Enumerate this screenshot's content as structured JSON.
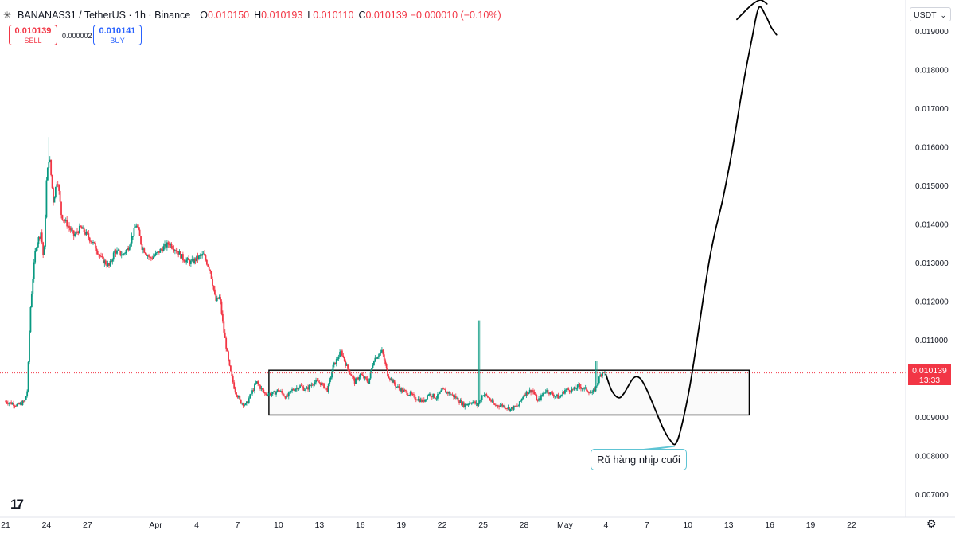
{
  "header": {
    "symbol": "BANANAS31 / TetherUS · 1h · Binance",
    "open_label": "O",
    "open": "0.010150",
    "high_label": "H",
    "high": "0.010193",
    "low_label": "L",
    "low": "0.010110",
    "close_label": "C",
    "close": "0.010139",
    "change": "−0.000010 (−0.10%)",
    "logo_icon": "banana-icon"
  },
  "trade": {
    "sell_price": "0.010139",
    "sell_label": "SELL",
    "spread": "0.000002",
    "buy_price": "0.010141",
    "buy_label": "BUY"
  },
  "currency_selector": "USDT",
  "price_tag": {
    "price": "0.010139",
    "countdown": "13:33"
  },
  "annotation": {
    "text": "Rũ hàng nhịp cuối"
  },
  "colors": {
    "up": "#089981",
    "down": "#f23645",
    "drawing": "#000000",
    "callout_border": "#5ec4d4"
  },
  "chart_data": {
    "type": "candlestick",
    "y_axis": {
      "range": [
        0.0064,
        0.0198
      ],
      "ticks": [
        "0.019000",
        "0.018000",
        "0.017000",
        "0.016000",
        "0.015000",
        "0.014000",
        "0.013000",
        "0.012000",
        "0.011000",
        "0.010000",
        "0.009000",
        "0.008000",
        "0.007000"
      ],
      "tick_values": [
        0.019,
        0.018,
        0.017,
        0.016,
        0.015,
        0.014,
        0.013,
        0.012,
        0.011,
        0.01,
        0.009,
        0.008,
        0.007
      ]
    },
    "x_axis": {
      "ticks": [
        "21",
        "24",
        "27",
        "Apr",
        "4",
        "7",
        "10",
        "13",
        "16",
        "19",
        "22",
        "25",
        "28",
        "May",
        "4",
        "7",
        "10",
        "13",
        "16",
        "19",
        "22"
      ],
      "tick_days": [
        0,
        3,
        6,
        11,
        14,
        17,
        20,
        23,
        26,
        29,
        32,
        35,
        38,
        41,
        44,
        47,
        50,
        53,
        56,
        59,
        62
      ],
      "day_range": [
        0,
        63.5
      ]
    },
    "current_price": 0.010139,
    "price_path": [
      [
        0,
        0.0094
      ],
      [
        0.9,
        0.0093
      ],
      [
        1.4,
        0.0094
      ],
      [
        1.6,
        0.0097
      ],
      [
        1.8,
        0.0117
      ],
      [
        2.0,
        0.0126
      ],
      [
        2.2,
        0.0134
      ],
      [
        2.6,
        0.0138
      ],
      [
        2.8,
        0.013
      ],
      [
        3.0,
        0.0151
      ],
      [
        3.2,
        0.0158
      ],
      [
        3.5,
        0.0146
      ],
      [
        3.8,
        0.0152
      ],
      [
        4.1,
        0.0142
      ],
      [
        4.5,
        0.014
      ],
      [
        5.0,
        0.0137
      ],
      [
        5.5,
        0.0139
      ],
      [
        6.0,
        0.0137
      ],
      [
        6.6,
        0.0134
      ],
      [
        7.0,
        0.0131
      ],
      [
        7.6,
        0.0129
      ],
      [
        8.0,
        0.0133
      ],
      [
        8.6,
        0.0132
      ],
      [
        9.0,
        0.0134
      ],
      [
        9.6,
        0.014
      ],
      [
        10.0,
        0.0134
      ],
      [
        10.6,
        0.0131
      ],
      [
        11.0,
        0.0132
      ],
      [
        11.6,
        0.0134
      ],
      [
        12.0,
        0.0135
      ],
      [
        12.6,
        0.0133
      ],
      [
        13.0,
        0.0131
      ],
      [
        13.6,
        0.013
      ],
      [
        14.0,
        0.0131
      ],
      [
        14.5,
        0.0132
      ],
      [
        15.0,
        0.0128
      ],
      [
        15.4,
        0.012
      ],
      [
        15.7,
        0.0121
      ],
      [
        16.0,
        0.0112
      ],
      [
        16.4,
        0.0103
      ],
      [
        16.8,
        0.0097
      ],
      [
        17.2,
        0.0094
      ],
      [
        17.6,
        0.0093
      ],
      [
        18.0,
        0.0096
      ],
      [
        18.4,
        0.0099
      ],
      [
        19.0,
        0.0096
      ],
      [
        19.6,
        0.0096
      ],
      [
        20.0,
        0.0097
      ],
      [
        20.6,
        0.0095
      ],
      [
        21.0,
        0.0097
      ],
      [
        21.6,
        0.0098
      ],
      [
        22.0,
        0.0097
      ],
      [
        22.6,
        0.0099
      ],
      [
        23.0,
        0.0099
      ],
      [
        23.6,
        0.0097
      ],
      [
        24.0,
        0.0103
      ],
      [
        24.6,
        0.0107
      ],
      [
        25.0,
        0.0103
      ],
      [
        25.6,
        0.0099
      ],
      [
        26.0,
        0.0101
      ],
      [
        26.6,
        0.0099
      ],
      [
        27.0,
        0.0105
      ],
      [
        27.6,
        0.0107
      ],
      [
        28.0,
        0.0101
      ],
      [
        28.6,
        0.0098
      ],
      [
        29.0,
        0.0097
      ],
      [
        29.6,
        0.0096
      ],
      [
        30.0,
        0.0095
      ],
      [
        30.6,
        0.0094
      ],
      [
        31.0,
        0.0096
      ],
      [
        31.6,
        0.0095
      ],
      [
        32.0,
        0.0097
      ],
      [
        32.6,
        0.0096
      ],
      [
        33.0,
        0.0095
      ],
      [
        33.6,
        0.0093
      ],
      [
        34.2,
        0.0094
      ],
      [
        34.6,
        0.0093
      ],
      [
        35.0,
        0.0096
      ],
      [
        35.4,
        0.0095
      ],
      [
        35.8,
        0.0093
      ],
      [
        36.4,
        0.0093
      ],
      [
        37.0,
        0.0092
      ],
      [
        37.6,
        0.0093
      ],
      [
        38.0,
        0.0096
      ],
      [
        38.6,
        0.0097
      ],
      [
        39.0,
        0.0094
      ],
      [
        39.6,
        0.0097
      ],
      [
        40.0,
        0.0096
      ],
      [
        40.6,
        0.0095
      ],
      [
        41.0,
        0.0097
      ],
      [
        41.6,
        0.0097
      ],
      [
        42.0,
        0.0098
      ],
      [
        42.6,
        0.0097
      ],
      [
        43.0,
        0.0096
      ],
      [
        43.3,
        0.0098
      ],
      [
        43.6,
        0.0101
      ],
      [
        43.8,
        0.0102
      ],
      [
        44.0,
        0.0101
      ]
    ],
    "spikes": [
      {
        "day": 3.2,
        "high": 0.01625
      },
      {
        "day": 34.7,
        "high": 0.0115
      },
      {
        "day": 43.3,
        "high": 0.01045
      }
    ],
    "ranges": {
      "range_box": {
        "day_start": 19.3,
        "day_end": 54.5,
        "top": 0.01021,
        "bottom": 0.00905
      }
    },
    "projection_path": [
      [
        44.0,
        0.0101
      ],
      [
        44.4,
        0.0097
      ],
      [
        44.9,
        0.0095
      ],
      [
        45.3,
        0.0096
      ],
      [
        46.0,
        0.01
      ],
      [
        46.5,
        0.01
      ],
      [
        47.0,
        0.0097
      ],
      [
        47.6,
        0.0092
      ],
      [
        48.2,
        0.0087
      ],
      [
        48.7,
        0.0084
      ],
      [
        49.1,
        0.0083
      ],
      [
        49.5,
        0.0087
      ],
      [
        50.1,
        0.0097
      ],
      [
        50.6,
        0.0108
      ],
      [
        51.1,
        0.012
      ],
      [
        51.6,
        0.0131
      ],
      [
        52.0,
        0.0138
      ],
      [
        52.6,
        0.0147
      ],
      [
        53.3,
        0.016
      ],
      [
        54.0,
        0.0175
      ],
      [
        54.7,
        0.0188
      ],
      [
        55.2,
        0.0196
      ],
      [
        55.7,
        0.0194
      ],
      [
        56.1,
        0.0191
      ],
      [
        56.5,
        0.0189
      ]
    ],
    "arrowhead_path": [
      [
        53.6,
        0.0193
      ],
      [
        54.6,
        0.01965
      ],
      [
        55.3,
        0.0198
      ],
      [
        55.8,
        0.0197
      ]
    ]
  }
}
